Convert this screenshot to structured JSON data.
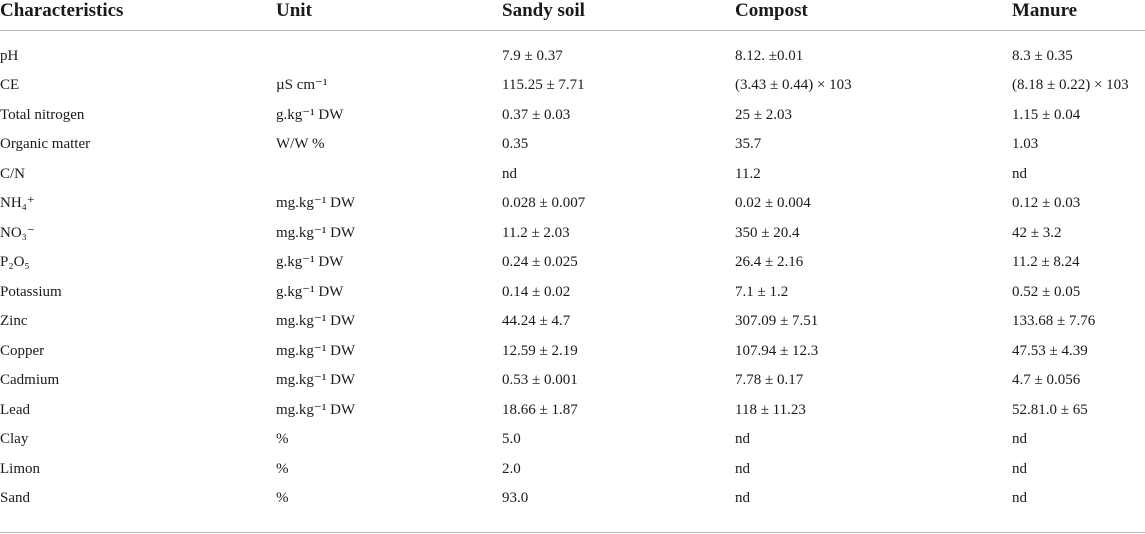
{
  "table": {
    "headers": [
      "Characteristics",
      "Unit",
      "Sandy soil",
      "Compost",
      "Manure"
    ],
    "rows": [
      {
        "characteristic": "pH",
        "unit": "",
        "sandy_soil": "7.9 ± 0.37",
        "compost": "8.12. ±0.01",
        "manure": "8.3 ± 0.35"
      },
      {
        "characteristic": "CE",
        "unit": "µS cm⁻¹",
        "sandy_soil": "115.25 ± 7.71",
        "compost": "(3.43 ± 0.44) × 103",
        "manure": "(8.18 ± 0.22) × 103"
      },
      {
        "characteristic": "Total nitrogen",
        "unit": "g.kg⁻¹ DW",
        "sandy_soil": "0.37 ± 0.03",
        "compost": "25 ± 2.03",
        "manure": "1.15 ± 0.04"
      },
      {
        "characteristic": "Organic matter",
        "unit": "W/W %",
        "sandy_soil": "0.35",
        "compost": "35.7",
        "manure": "1.03"
      },
      {
        "characteristic": "C/N",
        "unit": "",
        "sandy_soil": "nd",
        "compost": "11.2",
        "manure": "nd"
      },
      {
        "characteristic": "NH₄⁺",
        "unit": "mg.kg⁻¹ DW",
        "sandy_soil": "0.028 ± 0.007",
        "compost": "0.02 ± 0.004",
        "manure": "0.12 ± 0.03"
      },
      {
        "characteristic": "NO₃⁻",
        "unit": "mg.kg⁻¹ DW",
        "sandy_soil": "11.2 ± 2.03",
        "compost": "350 ± 20.4",
        "manure": "42 ± 3.2"
      },
      {
        "characteristic": "P₂O₅",
        "unit": "g.kg⁻¹ DW",
        "sandy_soil": "0.24 ± 0.025",
        "compost": "26.4 ± 2.16",
        "manure": "11.2 ± 8.24"
      },
      {
        "characteristic": "Potassium",
        "unit": "g.kg⁻¹ DW",
        "sandy_soil": "0.14 ± 0.02",
        "compost": "7.1 ± 1.2",
        "manure": "0.52 ± 0.05"
      },
      {
        "characteristic": "Zinc",
        "unit": "mg.kg⁻¹ DW",
        "sandy_soil": "44.24 ± 4.7",
        "compost": "307.09 ± 7.51",
        "manure": "133.68 ± 7.76"
      },
      {
        "characteristic": "Copper",
        "unit": "mg.kg⁻¹ DW",
        "sandy_soil": "12.59 ± 2.19",
        "compost": "107.94 ± 12.3",
        "manure": "47.53 ± 4.39"
      },
      {
        "characteristic": "Cadmium",
        "unit": "mg.kg⁻¹ DW",
        "sandy_soil": "0.53 ± 0.001",
        "compost": "7.78 ± 0.17",
        "manure": "4.7 ± 0.056"
      },
      {
        "characteristic": "Lead",
        "unit": "mg.kg⁻¹ DW",
        "sandy_soil": "18.66 ± 1.87",
        "compost": "118 ± 11.23",
        "manure": "52.81.0 ± 65"
      },
      {
        "characteristic": "Clay",
        "unit": "%",
        "sandy_soil": "5.0",
        "compost": "nd",
        "manure": "nd"
      },
      {
        "characteristic": "Limon",
        "unit": "%",
        "sandy_soil": "2.0",
        "compost": "nd",
        "manure": "nd"
      },
      {
        "characteristic": "Sand",
        "unit": "%",
        "sandy_soil": "93.0",
        "compost": "nd",
        "manure": "nd"
      }
    ]
  }
}
